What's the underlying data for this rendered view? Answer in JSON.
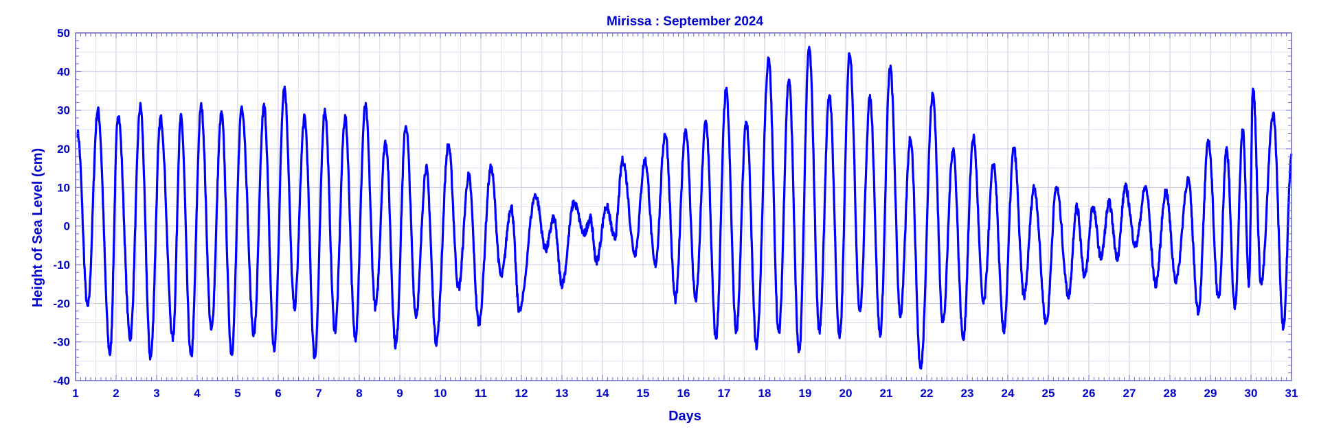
{
  "colors": {
    "line": "#0000ff",
    "text": "#0000cc",
    "grid": "#c8c8e6",
    "frame": "#6666cc"
  },
  "chart_data": {
    "type": "line",
    "title": "Mirissa : September 2024",
    "xlabel": "Days",
    "ylabel": "Height of Sea Level (cm)",
    "xlim": [
      1,
      31
    ],
    "ylim": [
      -40,
      50
    ],
    "x_ticks": [
      "1",
      "2",
      "3",
      "4",
      "5",
      "6",
      "7",
      "8",
      "9",
      "10",
      "11",
      "12",
      "13",
      "14",
      "15",
      "16",
      "17",
      "18",
      "19",
      "20",
      "21",
      "22",
      "23",
      "24",
      "25",
      "26",
      "27",
      "28",
      "29",
      "30",
      "31"
    ],
    "y_ticks": [
      "50",
      "40",
      "30",
      "20",
      "10",
      "0",
      "-10",
      "-20",
      "-30",
      "-40"
    ],
    "grid": true,
    "series": [
      {
        "peaks": [
          [
            1.05,
            24
          ],
          [
            1.3,
            -21
          ],
          [
            1.55,
            30
          ],
          [
            1.85,
            -33
          ],
          [
            2.05,
            29
          ],
          [
            2.35,
            -29
          ],
          [
            2.6,
            31
          ],
          [
            2.85,
            -34
          ],
          [
            3.1,
            28
          ],
          [
            3.4,
            -29
          ],
          [
            3.6,
            28
          ],
          [
            3.85,
            -34
          ],
          [
            4.1,
            31
          ],
          [
            4.35,
            -27
          ],
          [
            4.6,
            29
          ],
          [
            4.85,
            -33
          ],
          [
            5.1,
            31
          ],
          [
            5.4,
            -28
          ],
          [
            5.65,
            31
          ],
          [
            5.9,
            -32
          ],
          [
            6.15,
            36
          ],
          [
            6.4,
            -21
          ],
          [
            6.65,
            28
          ],
          [
            6.9,
            -34
          ],
          [
            7.15,
            30
          ],
          [
            7.4,
            -27
          ],
          [
            7.65,
            28
          ],
          [
            7.9,
            -29
          ],
          [
            8.15,
            31
          ],
          [
            8.4,
            -21
          ],
          [
            8.65,
            22
          ],
          [
            8.9,
            -31
          ],
          [
            9.15,
            26
          ],
          [
            9.4,
            -23
          ],
          [
            9.65,
            15
          ],
          [
            9.9,
            -30
          ],
          [
            10.2,
            21
          ],
          [
            10.45,
            -16
          ],
          [
            10.7,
            13
          ],
          [
            10.95,
            -25
          ],
          [
            11.25,
            15
          ],
          [
            11.5,
            -13
          ],
          [
            11.75,
            5
          ],
          [
            11.95,
            -22
          ],
          [
            12.35,
            8
          ],
          [
            12.6,
            -6
          ],
          [
            12.8,
            2
          ],
          [
            13.0,
            -15
          ],
          [
            13.3,
            6
          ],
          [
            13.55,
            -2
          ],
          [
            13.7,
            2
          ],
          [
            13.85,
            -9
          ],
          [
            14.1,
            5
          ],
          [
            14.3,
            -3
          ],
          [
            14.5,
            17
          ],
          [
            14.8,
            -7
          ],
          [
            15.05,
            17
          ],
          [
            15.3,
            -10
          ],
          [
            15.55,
            24
          ],
          [
            15.8,
            -19
          ],
          [
            16.05,
            25
          ],
          [
            16.3,
            -19
          ],
          [
            16.55,
            27
          ],
          [
            16.8,
            -29
          ],
          [
            17.05,
            35
          ],
          [
            17.3,
            -27
          ],
          [
            17.55,
            27
          ],
          [
            17.8,
            -31
          ],
          [
            18.1,
            43
          ],
          [
            18.35,
            -28
          ],
          [
            18.6,
            38
          ],
          [
            18.85,
            -33
          ],
          [
            19.1,
            46
          ],
          [
            19.35,
            -27
          ],
          [
            19.6,
            34
          ],
          [
            19.85,
            -29
          ],
          [
            20.1,
            45
          ],
          [
            20.35,
            -22
          ],
          [
            20.6,
            33
          ],
          [
            20.85,
            -28
          ],
          [
            21.1,
            41
          ],
          [
            21.35,
            -23
          ],
          [
            21.6,
            23
          ],
          [
            21.85,
            -37
          ],
          [
            22.15,
            34
          ],
          [
            22.4,
            -25
          ],
          [
            22.65,
            20
          ],
          [
            22.9,
            -29
          ],
          [
            23.15,
            23
          ],
          [
            23.4,
            -20
          ],
          [
            23.65,
            16
          ],
          [
            23.9,
            -27
          ],
          [
            24.15,
            20
          ],
          [
            24.4,
            -18
          ],
          [
            24.65,
            10
          ],
          [
            24.95,
            -25
          ],
          [
            25.2,
            10
          ],
          [
            25.5,
            -18
          ],
          [
            25.7,
            5
          ],
          [
            25.9,
            -13
          ],
          [
            26.1,
            5
          ],
          [
            26.3,
            -8
          ],
          [
            26.5,
            6
          ],
          [
            26.7,
            -8
          ],
          [
            26.9,
            10
          ],
          [
            27.15,
            -5
          ],
          [
            27.4,
            10
          ],
          [
            27.65,
            -15
          ],
          [
            27.9,
            9
          ],
          [
            28.15,
            -14
          ],
          [
            28.45,
            12
          ],
          [
            28.7,
            -22
          ],
          [
            28.95,
            22
          ],
          [
            29.2,
            -19
          ],
          [
            29.4,
            20
          ],
          [
            29.6,
            -21
          ],
          [
            29.8,
            25
          ],
          [
            29.95,
            -15
          ],
          [
            30.05,
            36
          ],
          [
            30.25,
            -15
          ],
          [
            30.55,
            29
          ],
          [
            30.8,
            -26
          ],
          [
            31.0,
            18
          ]
        ]
      }
    ]
  }
}
